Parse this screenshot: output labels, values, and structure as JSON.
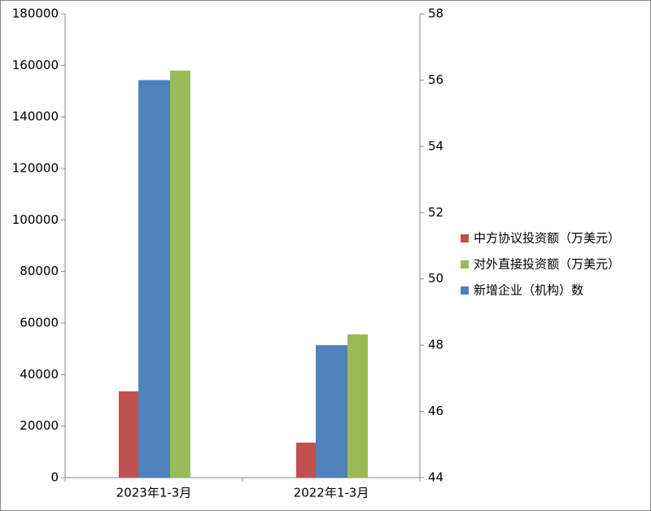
{
  "chart_data": {
    "type": "bar",
    "categories": [
      "2023年1-3月",
      "2022年1-3月"
    ],
    "series": [
      {
        "name": "中方协议投资额（万美元）",
        "color": "#c0504d",
        "values": [
          33500,
          13600
        ]
      },
      {
        "name": "对外直接投资额（万美元）",
        "color": "#9bbb59",
        "values": [
          158000,
          55600
        ]
      },
      {
        "name": "新增企业（机构）数",
        "color": "#4f81bd",
        "values": [
          56,
          48
        ],
        "axis": "y2"
      }
    ],
    "ylim": [
      0,
      180000
    ],
    "yticks": [
      0,
      20000,
      40000,
      60000,
      80000,
      100000,
      120000,
      140000,
      160000,
      180000
    ],
    "y2lim": [
      44,
      58
    ],
    "y2ticks": [
      44,
      46,
      48,
      50,
      52,
      54,
      56,
      58
    ],
    "grid": false,
    "legend": "right"
  }
}
